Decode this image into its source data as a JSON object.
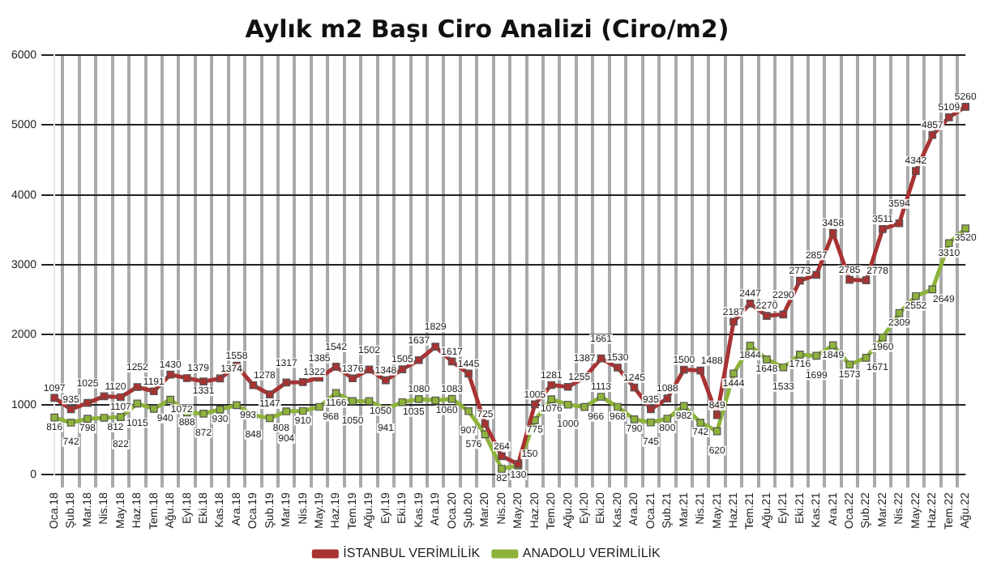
{
  "chart_data": {
    "type": "line",
    "title": "Aylık m2 Başı Ciro Analizi (Ciro/m2)",
    "categories": [
      "Oca.18",
      "Şub.18",
      "Mar.18",
      "Nis.18",
      "May.18",
      "Haz.18",
      "Tem.18",
      "Ağu.18",
      "Eyl.18",
      "Eki.18",
      "Kas.18",
      "Ara.18",
      "Oca.19",
      "Şub.19",
      "Mar.19",
      "Nis.19",
      "May.19",
      "Haz.19",
      "Tem.19",
      "Ağu.19",
      "Eyl.19",
      "Eki.19",
      "Kas.19",
      "Ara.19",
      "Oca.20",
      "Şub.20",
      "Mar.20",
      "Nis.20",
      "May.20",
      "Haz.20",
      "Tem.20",
      "Ağu.20",
      "Eyl.20",
      "Eki.20",
      "Kas.20",
      "Ara.20",
      "Oca.21",
      "Şub.21",
      "Mar.21",
      "Nis.21",
      "May.21",
      "Haz.21",
      "Tem.21",
      "Ağu.21",
      "Eyl.21",
      "Eki.21",
      "Kas.21",
      "Ara.21",
      "Oca.22",
      "Şub.22",
      "Mar.22",
      "Nis.22",
      "May.22",
      "Haz.22",
      "Tem.22",
      "Ağu.22"
    ],
    "series": [
      {
        "name": "İSTANBUL VERİMLİLİK",
        "color": "#a83232",
        "values": [
          1097,
          935,
          1025,
          1120,
          1107,
          1252,
          1191,
          1430,
          1379,
          1331,
          1374,
          1558,
          1278,
          1147,
          1317,
          1322,
          1385,
          1542,
          1376,
          1502,
          1348,
          1505,
          1637,
          1829,
          1617,
          1445,
          725,
          264,
          150,
          1005,
          1281,
          1255,
          1387,
          1661,
          1530,
          1245,
          935,
          1088,
          1500,
          1488,
          849,
          2187,
          2447,
          2270,
          2290,
          2773,
          2857,
          3458,
          2785,
          2778,
          3511,
          3594,
          4342,
          4857,
          5109,
          5260
        ]
      },
      {
        "name": "ANADOLU VERİMLİLİK",
        "color": "#8db33a",
        "values": [
          816,
          742,
          798,
          812,
          822,
          1015,
          940,
          1072,
          888,
          872,
          930,
          993,
          848,
          808,
          904,
          910,
          968,
          1166,
          1050,
          1050,
          941,
          1035,
          1080,
          1060,
          1083,
          907,
          576,
          82,
          130,
          775,
          1076,
          1000,
          966,
          1113,
          968,
          790,
          745,
          800,
          982,
          742,
          620,
          1444,
          1844,
          1648,
          1533,
          1716,
          1699,
          1849,
          1573,
          1671,
          1960,
          2309,
          2552,
          2649,
          3310,
          3520
        ]
      }
    ],
    "ylim": [
      0,
      6000
    ],
    "yticks": [
      0,
      1000,
      2000,
      3000,
      4000,
      5000,
      6000
    ],
    "grid": true,
    "legend": "bottom",
    "marker": "square",
    "data_labels": true
  }
}
